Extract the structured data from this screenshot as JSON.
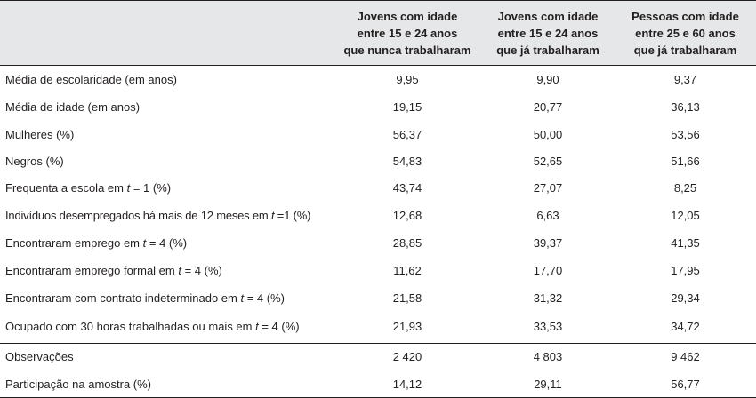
{
  "columns": [
    [
      "Jovens com idade",
      "entre 15 e 24 anos",
      "que nunca trabalharam"
    ],
    [
      "Jovens com idade",
      "entre 15 e 24 anos",
      "que já trabalharam"
    ],
    [
      "Pessoas com idade",
      "entre 25 e 60 anos",
      "que já trabalharam"
    ]
  ],
  "rows": [
    {
      "label": "Média de escolaridade (em anos)",
      "values": [
        "9,95",
        "9,90",
        "9,37"
      ]
    },
    {
      "label": "Média de idade (em anos)",
      "values": [
        "19,15",
        "20,77",
        "36,13"
      ]
    },
    {
      "label": "Mulheres (%)",
      "values": [
        "56,37",
        "50,00",
        "53,56"
      ]
    },
    {
      "label": "Negros (%)",
      "values": [
        "54,83",
        "52,65",
        "51,66"
      ]
    },
    {
      "label_pre": "Frequenta a escola em ",
      "label_var": "t",
      "label_post": " = 1 (%)",
      "values": [
        "43,74",
        "27,07",
        "8,25"
      ]
    },
    {
      "label_pre": "Indivíduos desempregados há mais de 12 meses em ",
      "label_var": "t",
      "label_post": " =1 (%)",
      "values": [
        "12,68",
        "6,63",
        "12,05"
      ]
    },
    {
      "label_pre": "Encontraram emprego em ",
      "label_var": "t",
      "label_post": " = 4 (%)",
      "values": [
        "28,85",
        "39,37",
        "41,35"
      ]
    },
    {
      "label_pre": "Encontraram emprego formal em ",
      "label_var": "t",
      "label_post": " = 4 (%)",
      "values": [
        "11,62",
        "17,70",
        "17,95"
      ]
    },
    {
      "label_pre": "Encontraram com contrato indeterminado em ",
      "label_var": "t",
      "label_post": " = 4 (%)",
      "values": [
        "21,58",
        "31,32",
        "29,34"
      ]
    },
    {
      "label_pre": "Ocupado com 30 horas trabalhadas ou mais em ",
      "label_var": "t",
      "label_post": " = 4 (%)",
      "values": [
        "21,93",
        "33,53",
        "34,72"
      ]
    },
    {
      "label": "Observações",
      "values": [
        "2 420",
        "4 803",
        "9 462"
      ]
    },
    {
      "label": "Participação na amostra (%)",
      "values": [
        "14,12",
        "29,11",
        "56,77"
      ]
    }
  ]
}
